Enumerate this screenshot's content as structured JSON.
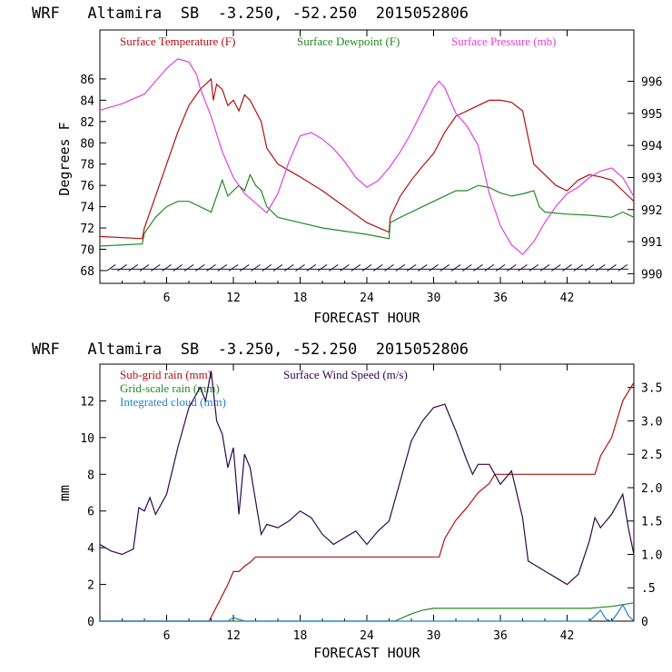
{
  "chart_data": [
    {
      "type": "line",
      "title": "WRF   Altamira  SB  -3.250, -52.250  2015052806",
      "xlabel": "FORECAST HOUR",
      "ylabel": "Degrees F",
      "xlim": [
        0,
        48
      ],
      "ylim": [
        66.8,
        90.6
      ],
      "y2lim": [
        989.7,
        997.6
      ],
      "x_ticks": [
        6,
        12,
        18,
        24,
        30,
        36,
        42
      ],
      "y_ticks": [
        68,
        70,
        72,
        74,
        76,
        78,
        80,
        82,
        84,
        86
      ],
      "y2_ticks": [
        990,
        991,
        992,
        993,
        994,
        995,
        996
      ],
      "colors": {
        "temperature": "#b01010",
        "dewpoint": "#208a20",
        "pressure": "#e040e0",
        "wind": "#2a0a4a"
      },
      "series": [
        {
          "name": "Surface Temperature (F)",
          "axis": "left",
          "x": [
            0,
            3.8,
            4.0,
            5,
            6,
            7,
            8,
            9,
            10,
            10.2,
            10.5,
            11,
            11.5,
            12,
            12.5,
            13,
            13.5,
            14,
            14.5,
            15,
            16,
            18,
            20,
            22,
            24,
            26.0,
            26.1,
            27,
            28,
            29,
            30,
            31,
            32,
            33,
            34,
            35,
            36,
            37,
            38,
            38.5,
            39,
            40,
            41,
            42,
            43,
            44,
            45,
            46,
            47,
            48
          ],
          "values": [
            71.2,
            71.0,
            72.0,
            75.0,
            78.0,
            81.0,
            83.5,
            85.0,
            86.0,
            84.0,
            85.5,
            85.0,
            83.5,
            84.0,
            83.0,
            84.5,
            84.0,
            83.0,
            82.0,
            79.5,
            78.0,
            76.8,
            75.5,
            74.0,
            72.5,
            71.6,
            73.0,
            75.0,
            76.5,
            77.8,
            79.0,
            81.0,
            82.5,
            83.0,
            83.5,
            84.0,
            84.0,
            83.8,
            83.0,
            80.5,
            78.0,
            77.0,
            76.0,
            75.5,
            76.5,
            77.0,
            76.8,
            76.5,
            75.5,
            74.5
          ]
        },
        {
          "name": "Surface Dewpoint (F)",
          "axis": "left",
          "x": [
            0,
            3.8,
            4.0,
            5,
            6,
            7,
            8,
            9,
            10,
            10.5,
            11,
            11.5,
            12,
            12.5,
            13,
            13.5,
            14,
            14.5,
            15,
            16,
            18,
            20,
            22,
            24,
            26.0,
            26.1,
            27,
            28,
            29,
            30,
            31,
            32,
            33,
            34,
            35,
            36,
            37,
            38,
            39,
            39.5,
            40,
            42,
            44,
            46,
            47,
            48
          ],
          "values": [
            70.3,
            70.5,
            71.5,
            73.0,
            74.0,
            74.5,
            74.5,
            74.0,
            73.5,
            75.0,
            76.5,
            75.0,
            75.5,
            76.0,
            75.5,
            77.0,
            76.0,
            75.5,
            74.0,
            73.0,
            72.5,
            72.0,
            71.7,
            71.4,
            71.0,
            72.5,
            73.0,
            73.5,
            74.0,
            74.5,
            75.0,
            75.5,
            75.5,
            76.0,
            75.8,
            75.3,
            75.0,
            75.2,
            75.5,
            74.0,
            73.5,
            73.3,
            73.2,
            73.0,
            73.5,
            73.0
          ]
        },
        {
          "name": "Surface Pressure (mb)",
          "axis": "right",
          "x": [
            0,
            2,
            4,
            5,
            6,
            7,
            8,
            8.7,
            9,
            10,
            11,
            12,
            13,
            14,
            15,
            16,
            17,
            18,
            19,
            20,
            21,
            22,
            23,
            24,
            25,
            26,
            27,
            28,
            29,
            30,
            30.5,
            31,
            32,
            33,
            34,
            35,
            36,
            37,
            38,
            39,
            40,
            41,
            42,
            43,
            44,
            45,
            46,
            47,
            48
          ],
          "values": [
            995.1,
            995.3,
            995.6,
            996.0,
            996.4,
            996.7,
            996.6,
            996.2,
            995.8,
            994.9,
            993.8,
            993.0,
            992.5,
            992.2,
            991.9,
            992.5,
            993.5,
            994.3,
            994.4,
            994.2,
            993.9,
            993.5,
            993.0,
            992.7,
            992.9,
            993.3,
            993.8,
            994.4,
            995.1,
            995.8,
            996.0,
            995.8,
            995.0,
            994.6,
            994.0,
            992.5,
            991.5,
            990.9,
            990.6,
            991.0,
            991.6,
            992.1,
            992.5,
            992.7,
            993.0,
            993.2,
            993.3,
            993.0,
            992.4
          ]
        }
      ]
    },
    {
      "type": "line",
      "title": "WRF   Altamira  SB  -3.250, -52.250  2015052806",
      "xlabel": "FORECAST HOUR",
      "ylabel": "mm",
      "xlim": [
        0,
        48
      ],
      "ylim": [
        0,
        14.0
      ],
      "y2lim": [
        0,
        3.85
      ],
      "x_ticks": [
        6,
        12,
        18,
        24,
        30,
        36,
        42
      ],
      "y_ticks": [
        0,
        2,
        4,
        6,
        8,
        10,
        12
      ],
      "y2_ticks": [
        "0",
        ".5",
        "1.0",
        "1.5",
        "2.0",
        "2.5",
        "3.0",
        "3.5"
      ],
      "y2_tick_values": [
        0,
        0.5,
        1.0,
        1.5,
        2.0,
        2.5,
        3.0,
        3.5
      ],
      "colors": {
        "subgrid": "#b01010",
        "gridscale": "#208a20",
        "cloud": "#2080d0",
        "wind": "#2a0a4a"
      },
      "series": [
        {
          "name": "Sub-grid rain (mm)",
          "axis": "left",
          "x": [
            0,
            9.8,
            10.5,
            11,
            11.5,
            12,
            12.5,
            13,
            13.5,
            14,
            30.5,
            31,
            32,
            33,
            34,
            35,
            35.5,
            44.5,
            45,
            46,
            47,
            48
          ],
          "values": [
            0,
            0,
            0.8,
            1.4,
            2.0,
            2.7,
            2.7,
            3.0,
            3.2,
            3.5,
            3.5,
            4.5,
            5.5,
            6.2,
            7.0,
            7.5,
            8.0,
            8.0,
            9.0,
            10.0,
            12.0,
            13.0
          ]
        },
        {
          "name": "Grid-scale rain (mm)",
          "axis": "left",
          "x": [
            0,
            26.5,
            28,
            29,
            30,
            35,
            40,
            44,
            45,
            46,
            47,
            48
          ],
          "values": [
            0,
            0,
            0.4,
            0.6,
            0.7,
            0.7,
            0.7,
            0.7,
            0.75,
            0.8,
            0.9,
            1.0
          ]
        },
        {
          "name": "Integrated cloud (mm)",
          "axis": "left",
          "x": [
            0,
            11.5,
            12,
            12.5,
            13,
            30,
            44,
            44.5,
            45,
            45.5,
            46,
            46.5,
            47,
            47.5,
            48
          ],
          "values": [
            0,
            0,
            0.2,
            0.1,
            0,
            0,
            0,
            0.3,
            0.6,
            0.1,
            0,
            0.4,
            0.9,
            0.3,
            0
          ]
        },
        {
          "name": "Surface Wind Speed (m/s)",
          "axis": "right",
          "x": [
            0,
            1,
            2,
            3,
            3.5,
            4,
            4.5,
            5,
            6,
            7,
            8,
            9,
            9.5,
            10,
            10.5,
            11,
            11.5,
            12,
            12.5,
            13,
            13.5,
            14,
            14.5,
            15,
            16,
            17,
            18,
            19,
            20,
            21,
            22,
            23,
            24,
            25,
            26,
            26.5,
            27,
            28,
            29,
            30,
            31,
            32,
            33,
            33.5,
            34,
            35,
            36,
            37,
            38,
            38.5,
            39,
            40,
            41,
            42,
            43,
            44,
            44.5,
            45,
            46,
            47,
            47.5,
            48
          ],
          "values": [
            1.15,
            1.05,
            1.0,
            1.08,
            1.7,
            1.65,
            1.85,
            1.6,
            1.9,
            2.6,
            3.2,
            3.5,
            3.3,
            3.75,
            3.0,
            2.8,
            2.3,
            2.6,
            1.6,
            2.5,
            2.3,
            1.8,
            1.3,
            1.45,
            1.4,
            1.5,
            1.65,
            1.55,
            1.3,
            1.15,
            1.25,
            1.35,
            1.15,
            1.35,
            1.5,
            1.8,
            2.1,
            2.7,
            3.0,
            3.2,
            3.25,
            2.85,
            2.4,
            2.2,
            2.35,
            2.35,
            2.05,
            2.25,
            1.55,
            0.9,
            0.85,
            0.75,
            0.65,
            0.55,
            0.7,
            1.2,
            1.55,
            1.4,
            1.6,
            1.9,
            1.4,
            1.0
          ]
        }
      ]
    }
  ]
}
